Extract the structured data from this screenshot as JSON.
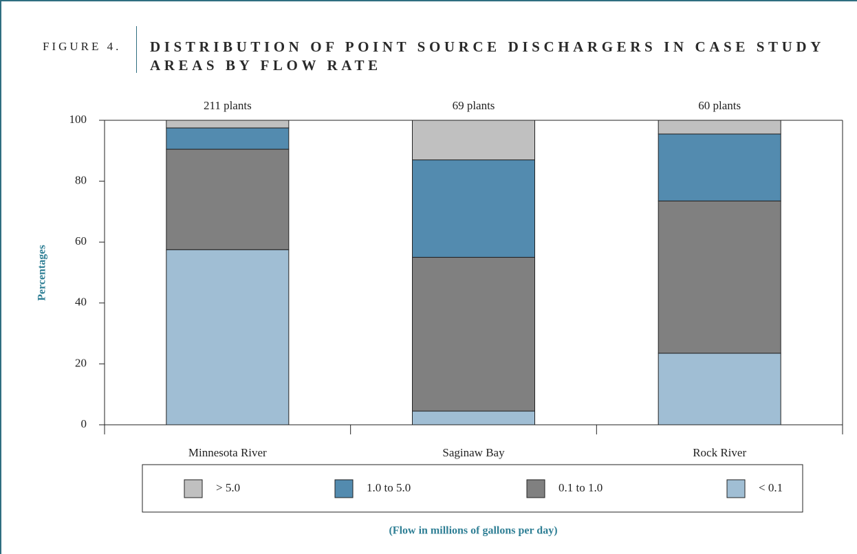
{
  "chart_data": {
    "type": "stacked-bar",
    "figure_label": "FIGURE 4.",
    "title": "DISTRIBUTION OF POINT SOURCE DISCHARGERS IN CASE STUDY AREAS BY FLOW RATE",
    "y_label": "Percentages",
    "x_label": "(Flow in millions of gallons per day)",
    "categories": [
      "Minnesota River",
      "Saginaw Bay",
      "Rock River"
    ],
    "annotations": [
      "211 plants",
      "69 plants",
      "60 plants"
    ],
    "series": [
      {
        "name": "< 0.1",
        "color": "#a0bed4",
        "values": [
          57.5,
          4.5,
          23.5
        ]
      },
      {
        "name": "0.1 to 1.0",
        "color": "#808080",
        "values": [
          33,
          50.5,
          50
        ]
      },
      {
        "name": "1.0 to 5.0",
        "color": "#538baf",
        "values": [
          7,
          32,
          22
        ]
      },
      {
        "name": "> 5.0",
        "color": "#c0c0c0",
        "values": [
          2.5,
          13,
          4.5
        ]
      }
    ],
    "ylim": [
      0,
      100
    ],
    "yticks": [
      0,
      20,
      40,
      60,
      80,
      100
    ]
  }
}
